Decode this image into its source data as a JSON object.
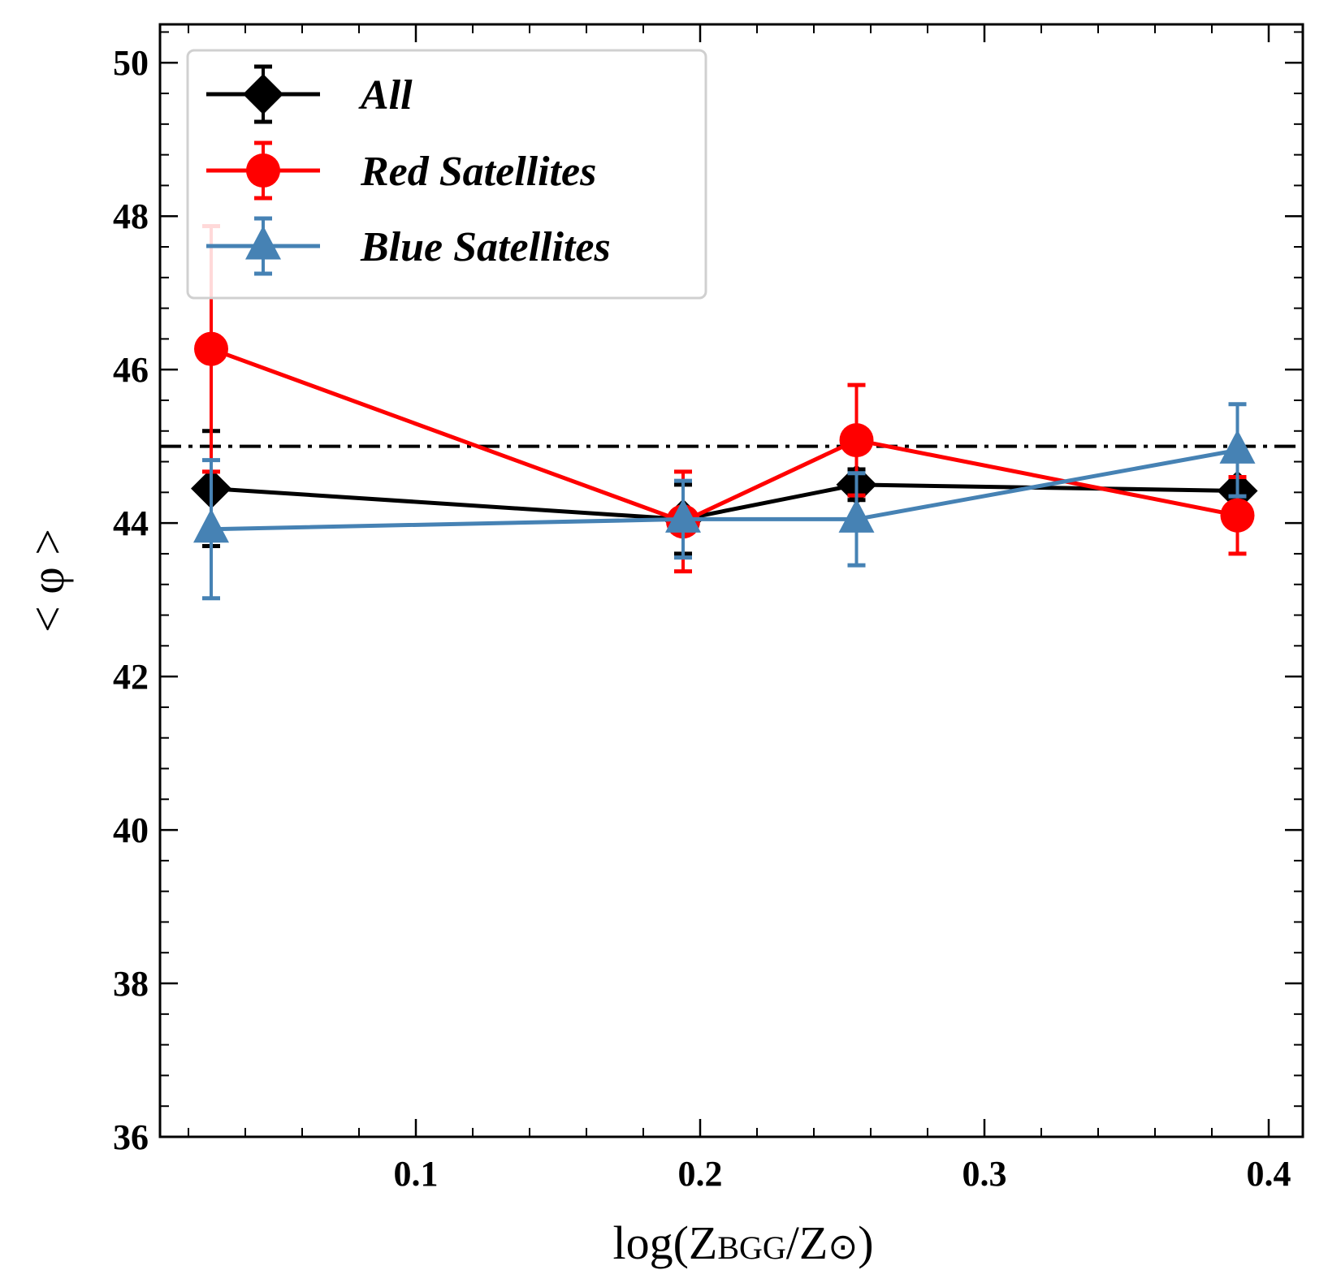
{
  "chart_data": {
    "type": "line",
    "title": "",
    "xlabel": "log(Z",
    "xlabel_sub": "BGG",
    "xlabel_mid": "/Z",
    "xlabel_sun": "⊙",
    "xlabel_end": ")",
    "ylabel": "< φ >",
    "xlim": [
      0.01,
      0.412
    ],
    "ylim": [
      36,
      50.5
    ],
    "xticks": [
      0.1,
      0.2,
      0.3,
      0.4
    ],
    "xtick_labels": [
      "0.1",
      "0.2",
      "0.3",
      "0.4"
    ],
    "yticks": [
      36,
      38,
      40,
      42,
      44,
      46,
      48,
      50
    ],
    "ytick_labels": [
      "36",
      "38",
      "40",
      "42",
      "44",
      "46",
      "48",
      "50"
    ],
    "reference_line": {
      "y": 45,
      "style": "dash-dot"
    },
    "legend_position": "top-left",
    "series": [
      {
        "name": "All",
        "color": "#000000",
        "marker": "diamond",
        "x": [
          0.028,
          0.194,
          0.255,
          0.389
        ],
        "y": [
          44.45,
          44.05,
          44.5,
          44.42
        ],
        "yerr": [
          0.75,
          0.45,
          0.2,
          0.15
        ]
      },
      {
        "name": "Red Satellites",
        "color": "#ff0000",
        "marker": "circle",
        "x": [
          0.028,
          0.194,
          0.255,
          0.389
        ],
        "y": [
          46.27,
          44.02,
          45.08,
          44.1
        ],
        "yerr": [
          1.6,
          0.65,
          0.72,
          0.5
        ]
      },
      {
        "name": "Blue Satellites",
        "color": "#4682b4",
        "marker": "triangle",
        "x": [
          0.028,
          0.194,
          0.255,
          0.389
        ],
        "y": [
          43.92,
          44.05,
          44.05,
          44.95
        ],
        "yerr": [
          0.9,
          0.5,
          0.6,
          0.6
        ]
      }
    ]
  }
}
